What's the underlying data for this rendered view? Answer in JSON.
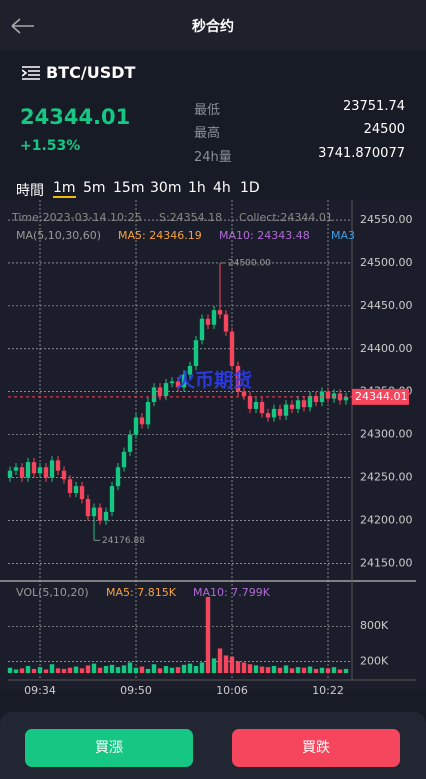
{
  "header": {
    "title": "秒合约"
  },
  "ticker": {
    "pair": "BTC/USDT",
    "price": "24344.01",
    "change": "+1.53%",
    "stats": [
      {
        "label": "最低",
        "value": "23751.74"
      },
      {
        "label": "最高",
        "value": "24500"
      },
      {
        "label": "24h量",
        "value": "3741.870077"
      }
    ]
  },
  "intervals": [
    "時間",
    "1m",
    "5m",
    "15m",
    "30m",
    "1h",
    "4h",
    "1D"
  ],
  "chart_data": {
    "type": "candlestick",
    "info": [
      "Time:2023-03-14 10:25",
      "S:24354.18",
      "Collect:24344.01"
    ],
    "ma_legend": [
      "MA(5,10,30,60)",
      "MA5: 24346.19",
      "MA10: 24343.48",
      "MA3"
    ],
    "watermark": "火币期货",
    "categories": [
      null,
      null,
      null,
      null,
      null,
      "09:34",
      null,
      null,
      null,
      null,
      null,
      null,
      null,
      null,
      null,
      null,
      null,
      null,
      null,
      null,
      null,
      "09:50",
      null,
      null,
      null,
      null,
      null,
      null,
      null,
      null,
      null,
      null,
      null,
      null,
      null,
      null,
      null,
      "10:06",
      null,
      null,
      null,
      null,
      null,
      null,
      null,
      null,
      null,
      null,
      null,
      null,
      null,
      null,
      null,
      "10:22",
      null,
      null,
      null
    ],
    "open": [
      24250,
      24258,
      24262,
      24250,
      24268,
      24255,
      24262,
      24250,
      24270,
      24258,
      24248,
      24232,
      24240,
      24225,
      24205,
      24215,
      24200,
      24210,
      24240,
      24262,
      24280,
      24300,
      24320,
      24312,
      24338,
      24355,
      24345,
      24360,
      24362,
      24355,
      24370,
      24380,
      24410,
      24435,
      24428,
      24445,
      24440,
      24420,
      24380,
      24350,
      24345,
      24330,
      24338,
      24325,
      24320,
      24330,
      24322,
      24335,
      24330,
      24340,
      24332,
      24345,
      24338,
      24350,
      24342,
      24348,
      24340
    ],
    "high": [
      24263,
      24267,
      24267,
      24273,
      24273,
      24267,
      24267,
      24275,
      24275,
      24263,
      24253,
      24245,
      24245,
      24230,
      24220,
      24220,
      24215,
      24245,
      24267,
      24285,
      24305,
      24325,
      24325,
      24343,
      24360,
      24360,
      24365,
      24367,
      24367,
      24375,
      24385,
      24415,
      24440,
      24440,
      24450,
      24500,
      24445,
      24425,
      24385,
      24355,
      24350,
      24343,
      24343,
      24330,
      24335,
      24335,
      24340,
      24340,
      24345,
      24345,
      24350,
      24350,
      24355,
      24355,
      24353,
      24353,
      24349
    ],
    "low": [
      24245,
      24253,
      24245,
      24245,
      24250,
      24250,
      24245,
      24245,
      24253,
      24243,
      24227,
      24227,
      24220,
      24200,
      24176.88,
      24195,
      24195,
      24205,
      24235,
      24257,
      24275,
      24295,
      24307,
      24307,
      24333,
      24340,
      24340,
      24355,
      24350,
      24350,
      24365,
      24375,
      24405,
      24423,
      24423,
      24435,
      24415,
      24375,
      24345,
      24340,
      24325,
      24325,
      24320,
      24315,
      24315,
      24317,
      24317,
      24325,
      24325,
      24327,
      24327,
      24333,
      24333,
      24337,
      24337,
      24335,
      24335
    ],
    "close": [
      24258,
      24262,
      24250,
      24268,
      24255,
      24262,
      24250,
      24270,
      24258,
      24248,
      24232,
      24240,
      24225,
      24205,
      24215,
      24200,
      24210,
      24240,
      24262,
      24280,
      24300,
      24320,
      24312,
      24338,
      24355,
      24345,
      24360,
      24362,
      24355,
      24370,
      24380,
      24410,
      24435,
      24428,
      24445,
      24440,
      24420,
      24380,
      24350,
      24345,
      24330,
      24338,
      24325,
      24320,
      24330,
      24322,
      24335,
      24330,
      24340,
      24332,
      24345,
      24338,
      24350,
      24342,
      24348,
      24340,
      24344.01
    ],
    "ylim": [
      24133,
      24564
    ],
    "yticks": [
      {
        "value": 24550,
        "label": "24550.00"
      },
      {
        "value": 24500,
        "label": "24500.00"
      },
      {
        "value": 24450,
        "label": "24450.00"
      },
      {
        "value": 24400,
        "label": "24400.00"
      },
      {
        "value": 24350,
        "label": "24350.00"
      },
      {
        "value": 24300,
        "label": "24300.00"
      },
      {
        "value": 24250,
        "label": "24250.00"
      },
      {
        "value": 24200,
        "label": "24200.00"
      },
      {
        "value": 24150,
        "label": "24150.00"
      }
    ],
    "last_price": 24344.01,
    "max_label": {
      "value": 24500,
      "label": "24500.00"
    },
    "min_label": 24176.88,
    "grid": true,
    "up_color": "#16c784",
    "down_color": "#f6465d",
    "volume": {
      "legend": [
        "VOL(5,10,20)",
        "MA5: 7.815K",
        "MA10: 7.799K"
      ],
      "values": [
        90000,
        60000,
        80000,
        120000,
        70000,
        100000,
        60000,
        150000,
        80000,
        70000,
        90000,
        110000,
        80000,
        130000,
        160000,
        90000,
        120000,
        140000,
        100000,
        130000,
        180000,
        90000,
        110000,
        70000,
        150000,
        80000,
        120000,
        90000,
        100000,
        140000,
        160000,
        120000,
        180000,
        1300000,
        250000,
        420000,
        300000,
        280000,
        200000,
        180000,
        150000,
        130000,
        110000,
        100000,
        120000,
        90000,
        130000,
        80000,
        100000,
        90000,
        110000,
        70000,
        90000,
        80000,
        100000,
        60000,
        70000
      ],
      "ylim": [
        0,
        1420000
      ],
      "yticks": [
        {
          "value": 800000,
          "label": "800K"
        },
        {
          "value": 200000,
          "label": "200K"
        }
      ]
    }
  },
  "buttons": [
    "買漲",
    "買跌"
  ]
}
